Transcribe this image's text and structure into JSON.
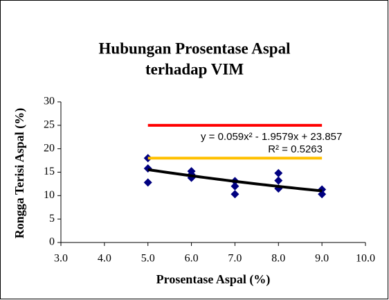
{
  "chart_data": {
    "type": "scatter",
    "title_lines": [
      "Hubungan Prosentase Aspal",
      "terhadap VIM"
    ],
    "x_label": "Prosentase Aspal (%)",
    "y_label": "Rongga Terisi Aspal (%)",
    "xlim": [
      3,
      10
    ],
    "xticks": [
      {
        "value": 3,
        "label": "3.0"
      },
      {
        "value": 4,
        "label": "4.0"
      },
      {
        "value": 5,
        "label": "5.0"
      },
      {
        "value": 6,
        "label": "6.0"
      },
      {
        "value": 7,
        "label": "7.0"
      },
      {
        "value": 8,
        "label": "8.0"
      },
      {
        "value": 9,
        "label": "9.0"
      },
      {
        "value": 10,
        "label": "10.0"
      }
    ],
    "ylim": [
      0,
      30
    ],
    "yticks": [
      0,
      5,
      10,
      15,
      20,
      25,
      30
    ],
    "series": [
      {
        "type": "scatter",
        "marker": "diamond",
        "color": "#000080",
        "x": [
          5,
          5,
          5,
          6,
          6,
          6,
          7,
          7,
          7,
          8,
          8,
          8,
          9,
          9
        ],
        "values": [
          18,
          15.8,
          12.8,
          15.2,
          14.5,
          13.8,
          13.1,
          12,
          10.3,
          14.8,
          13.2,
          11.5,
          11.3,
          10.3
        ]
      },
      {
        "type": "line",
        "color": "#ff0000",
        "x": [
          5,
          9
        ],
        "values": [
          25,
          25
        ]
      },
      {
        "type": "line",
        "color": "#ffc000",
        "x": [
          5,
          9
        ],
        "values": [
          18,
          18
        ]
      }
    ],
    "trendline": {
      "color": "#000000",
      "coefficients": [
        0.059,
        -1.9579,
        23.857
      ],
      "x_range": [
        5,
        9
      ],
      "equation": "y = 0.059x² - 1.9579x + 23.857",
      "r_squared": "R² = 0.5263"
    }
  }
}
